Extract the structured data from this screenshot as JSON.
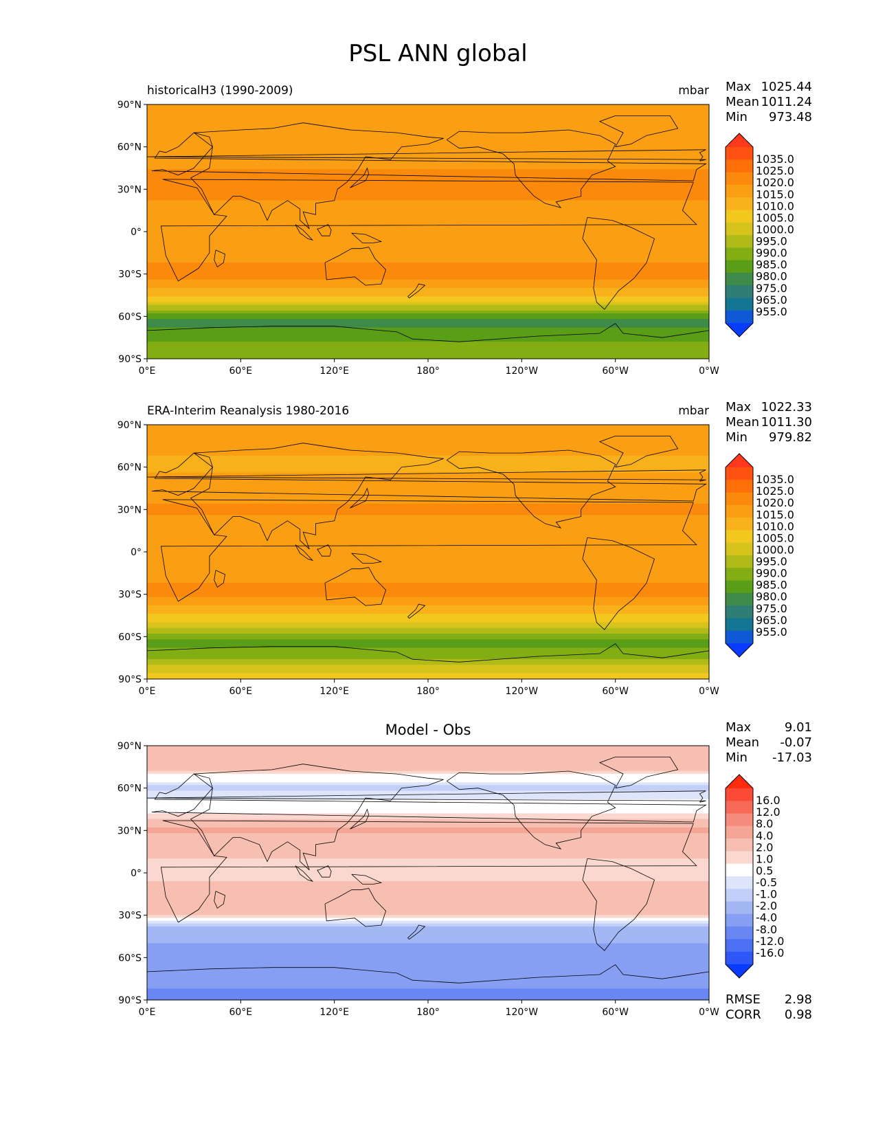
{
  "figure": {
    "title": "PSL ANN global"
  },
  "chart_data": [
    {
      "type": "heatmap",
      "title": "historicalH3 (1990-2009)",
      "units": "mbar",
      "stats": {
        "Max": "1025.44",
        "Mean": "1011.24",
        "Min": "973.48"
      },
      "xlim": [
        0,
        360
      ],
      "ylim": [
        -90,
        90
      ],
      "x_ticks": [
        "0°E",
        "60°E",
        "120°E",
        "180°",
        "120°W",
        "60°W",
        "0°W"
      ],
      "y_ticks": [
        "90°N",
        "60°N",
        "30°N",
        "0°",
        "30°S",
        "60°S",
        "90°S"
      ],
      "colorbar": {
        "labels": [
          "1035.0",
          "1025.0",
          "1020.0",
          "1015.0",
          "1010.0",
          "1005.0",
          "1000.0",
          "995.0",
          "990.0",
          "985.0",
          "980.0",
          "975.0",
          "965.0",
          "955.0"
        ],
        "colors": [
          "#ff3a1c",
          "#ff5210",
          "#fd6f08",
          "#fb8a0c",
          "#fa9e14",
          "#f8b11a",
          "#f2c71e",
          "#d6c41c",
          "#b0bb18",
          "#82ae14",
          "#5a9e18",
          "#3e8a48",
          "#2e7e76",
          "#137692",
          "#0f58d8",
          "#0a3cff"
        ]
      },
      "zonal_profile": {
        "lat": [
          90,
          75,
          60,
          45,
          30,
          15,
          0,
          -15,
          -30,
          -45,
          -55,
          -60,
          -65,
          -75,
          -90
        ],
        "value": [
          1012,
          1014,
          1011,
          1015,
          1017,
          1013,
          1010,
          1013,
          1018,
          1006,
          992,
          982,
          978,
          984,
          990
        ]
      }
    },
    {
      "type": "heatmap",
      "title": "ERA-Interim Reanalysis 1980-2016",
      "units": "mbar",
      "stats": {
        "Max": "1022.33",
        "Mean": "1011.30",
        "Min": "979.82"
      },
      "xlim": [
        0,
        360
      ],
      "ylim": [
        -90,
        90
      ],
      "x_ticks": [
        "0°E",
        "60°E",
        "120°E",
        "180°",
        "120°W",
        "60°W",
        "0°W"
      ],
      "y_ticks": [
        "90°N",
        "60°N",
        "30°N",
        "0°",
        "30°S",
        "60°S",
        "90°S"
      ],
      "colorbar": {
        "labels": [
          "1035.0",
          "1025.0",
          "1020.0",
          "1015.0",
          "1010.0",
          "1005.0",
          "1000.0",
          "995.0",
          "990.0",
          "985.0",
          "980.0",
          "975.0",
          "965.0",
          "955.0"
        ],
        "colors": [
          "#ff3a1c",
          "#ff5210",
          "#fd6f08",
          "#fb8a0c",
          "#fa9e14",
          "#f8b11a",
          "#f2c71e",
          "#d6c41c",
          "#b0bb18",
          "#82ae14",
          "#5a9e18",
          "#3e8a48",
          "#2e7e76",
          "#137692",
          "#0f58d8",
          "#0a3cff"
        ]
      },
      "zonal_profile": {
        "lat": [
          90,
          75,
          60,
          45,
          30,
          15,
          0,
          -15,
          -30,
          -45,
          -55,
          -60,
          -65,
          -75,
          -90
        ],
        "value": [
          1012,
          1011,
          1009,
          1013,
          1016,
          1013,
          1010,
          1013,
          1017,
          1005,
          995,
          986,
          984,
          988,
          1006
        ]
      }
    },
    {
      "type": "heatmap",
      "title": "Model - Obs",
      "units": "",
      "stats": {
        "Max": "9.01",
        "Mean": "-0.07",
        "Min": "-17.03"
      },
      "extra_stats": {
        "RMSE": "2.98",
        "CORR": "0.98"
      },
      "xlim": [
        0,
        360
      ],
      "ylim": [
        -90,
        90
      ],
      "x_ticks": [
        "0°E",
        "60°E",
        "120°E",
        "180°",
        "120°W",
        "60°W",
        "0°W"
      ],
      "y_ticks": [
        "90°N",
        "60°N",
        "30°N",
        "0°",
        "30°S",
        "60°S",
        "90°S"
      ],
      "colorbar": {
        "labels": [
          "16.0",
          "12.0",
          "8.0",
          "4.0",
          "2.0",
          "1.0",
          "0.5",
          "-0.5",
          "-1.0",
          "-2.0",
          "-4.0",
          "-8.0",
          "-12.0",
          "-16.0"
        ],
        "colors": [
          "#ff2a10",
          "#fb4a36",
          "#f76a58",
          "#f68a7c",
          "#f5a596",
          "#f7bfb2",
          "#fad8cf",
          "#ffffff",
          "#dde5fb",
          "#c2cff8",
          "#a3b7f5",
          "#869ff3",
          "#6987f2",
          "#4d6ff4",
          "#2f56f6",
          "#0a3cff"
        ]
      },
      "zonal_profile": {
        "lat": [
          90,
          75,
          60,
          45,
          30,
          15,
          0,
          -15,
          -30,
          -40,
          -50,
          -60,
          -75,
          -90
        ],
        "value": [
          1.5,
          1.5,
          -1.2,
          0.2,
          2.2,
          1.2,
          0.7,
          1.4,
          1.1,
          -2.5,
          -4,
          -5,
          -6,
          -10
        ]
      }
    }
  ]
}
